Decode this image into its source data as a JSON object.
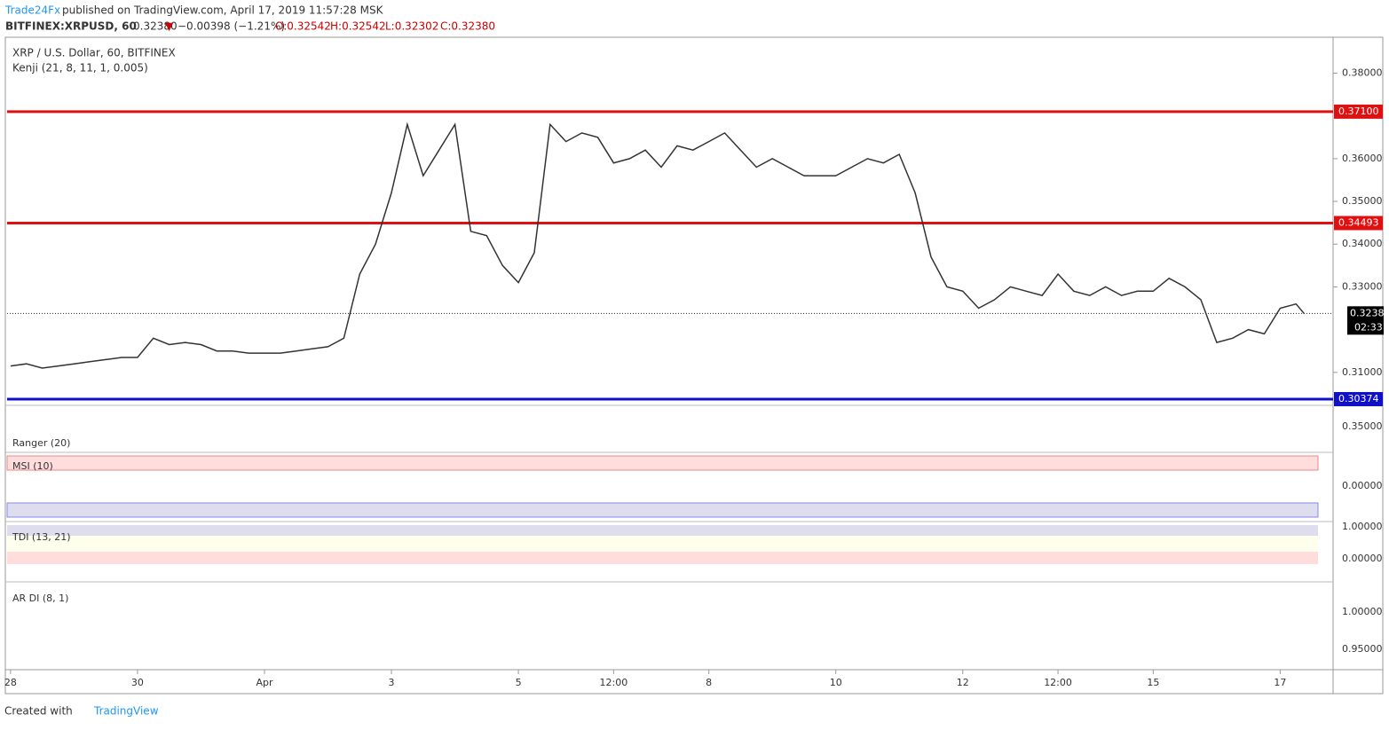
{
  "header": {
    "brand": "Trade24Fx",
    "published": "published on TradingView.com, April 17, 2019 11:57:28 MSK",
    "symbol": "BITFINEX:XRPUSD, 60",
    "last": "0.32380",
    "change": "−0.00398 (−1.21%)",
    "open": "O:0.32542",
    "high": "H:0.32542",
    "low": "L:0.32302",
    "close": "C:0.32380"
  },
  "chart_data": {
    "type": "line",
    "title": "XRP / U.S. Dollar, 60, BITFINEX",
    "subtitle": "Kenji (21, 8, 11, 1, 0.005)",
    "x": [
      0,
      6,
      12,
      18,
      24,
      30,
      36,
      42,
      48,
      54,
      60,
      66,
      72,
      78,
      84,
      90,
      96,
      102,
      108,
      114,
      120,
      126,
      132,
      138,
      144,
      150,
      156,
      162,
      168,
      174,
      180,
      186,
      192,
      198,
      204,
      210,
      216,
      222,
      228,
      234,
      240,
      246,
      252,
      258,
      264,
      270,
      276,
      282,
      288,
      294,
      300,
      306,
      312,
      318,
      324,
      330,
      336,
      342,
      348,
      354,
      360,
      366,
      372,
      378,
      384,
      390,
      396,
      402,
      408,
      414,
      420,
      426,
      432,
      438,
      444,
      450,
      456,
      462,
      468,
      474,
      480,
      486,
      489
    ],
    "values": [
      0.3115,
      0.312,
      0.311,
      0.3115,
      0.312,
      0.3125,
      0.313,
      0.3135,
      0.3135,
      0.318,
      0.3165,
      0.317,
      0.3165,
      0.315,
      0.315,
      0.3145,
      0.3145,
      0.3145,
      0.315,
      0.3155,
      0.316,
      0.318,
      0.333,
      0.34,
      0.352,
      0.368,
      0.356,
      0.362,
      0.368,
      0.343,
      0.342,
      0.335,
      0.331,
      0.338,
      0.368,
      0.364,
      0.366,
      0.365,
      0.359,
      0.36,
      0.362,
      0.358,
      0.363,
      0.362,
      0.364,
      0.366,
      0.362,
      0.358,
      0.36,
      0.358,
      0.356,
      0.356,
      0.356,
      0.358,
      0.36,
      0.359,
      0.361,
      0.352,
      0.337,
      0.33,
      0.329,
      0.325,
      0.327,
      0.33,
      0.329,
      0.328,
      0.333,
      0.329,
      0.328,
      0.33,
      0.328,
      0.329,
      0.329,
      0.332,
      0.33,
      0.327,
      0.317,
      0.318,
      0.32,
      0.319,
      0.325,
      0.326,
      0.3238
    ],
    "color": "#333333",
    "xlim": [
      -1.3,
      500
    ],
    "xticks": [
      {
        "value": 0,
        "label": "28"
      },
      {
        "value": 48,
        "label": "30"
      },
      {
        "value": 96,
        "label": "Apr"
      },
      {
        "value": 144,
        "label": "3"
      },
      {
        "value": 192,
        "label": "5"
      },
      {
        "value": 228,
        "label": "12:00"
      },
      {
        "value": 264,
        "label": "8"
      },
      {
        "value": 312,
        "label": "10"
      },
      {
        "value": 360,
        "label": "12"
      },
      {
        "value": 396,
        "label": "12:00"
      },
      {
        "value": 432,
        "label": "15"
      },
      {
        "value": 480,
        "label": "17"
      }
    ],
    "ylim": [
      0.3027,
      0.3884
    ],
    "yticks": [
      {
        "value": 0.38,
        "label": "0.38000"
      },
      {
        "value": 0.36,
        "label": "0.36000"
      },
      {
        "value": 0.35,
        "label": "0.35000"
      },
      {
        "value": 0.34,
        "label": "0.34000"
      },
      {
        "value": 0.33,
        "label": "0.33000"
      },
      {
        "value": 0.31,
        "label": "0.31000"
      }
    ],
    "levels": [
      {
        "value": 0.371,
        "label": "0.37100",
        "color": "#e01010"
      },
      {
        "value": 0.34493,
        "label": "0.34493",
        "color": "#e01010"
      },
      {
        "value": 0.30374,
        "label": "0.30374",
        "color": "#1010c8"
      }
    ],
    "last_price": {
      "value": 0.3238,
      "label": "0.32380"
    },
    "countdown": "02:33"
  },
  "panes": [
    {
      "title": "Ranger (20)",
      "ticks": [
        "0.35000"
      ]
    },
    {
      "title": "MSI (10)",
      "ticks": [
        "0.00000"
      ]
    },
    {
      "title": "TDI (13, 21)",
      "ticks": [
        "1.00000",
        "0.00000"
      ]
    },
    {
      "title": "AR DI (8, 1)",
      "ticks": [
        "1.00000",
        "0.95000"
      ]
    }
  ],
  "footer": {
    "created": "Created with",
    "logo": "TradingView"
  }
}
